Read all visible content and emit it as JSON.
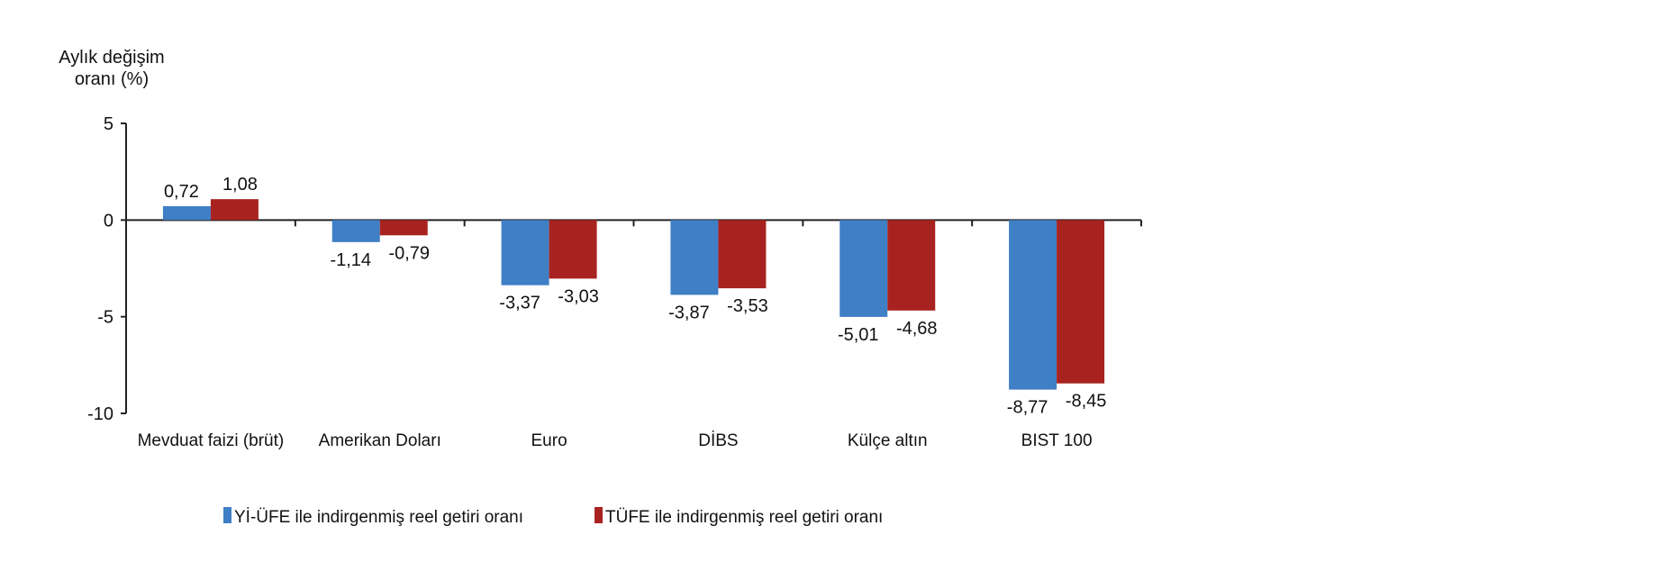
{
  "chart_data": {
    "type": "bar",
    "title": "",
    "ylabel_lines": [
      "Aylık değişim",
      "oranı (%)"
    ],
    "xlabel": "",
    "ylim": [
      -10,
      5
    ],
    "yticks": [
      5,
      0,
      -5,
      -10
    ],
    "ytick_labels": [
      "5",
      "0",
      "-5",
      "-10"
    ],
    "grid": false,
    "legend_position": "bottom",
    "categories": [
      "Mevduat faizi (brüt)",
      "Amerikan Doları",
      "Euro",
      "DİBS",
      "Külçe altın",
      "BIST 100"
    ],
    "series": [
      {
        "name": "Yİ-ÜFE ile indirgenmiş reel getiri oranı",
        "color": "#3f7fc5",
        "values": [
          0.72,
          -1.14,
          -3.37,
          -3.87,
          -5.01,
          -8.77
        ],
        "labels": [
          "0,72",
          "-1,14",
          "-3,37",
          "-3,87",
          "-5,01",
          "-8,77"
        ]
      },
      {
        "name": "TÜFE ile indirgenmiş reel getiri oranı",
        "color": "#a8231f",
        "values": [
          1.08,
          -0.79,
          -3.03,
          -3.53,
          -4.68,
          -8.45
        ],
        "labels": [
          "1,08",
          "-0,79",
          "-3,03",
          "-3,53",
          "-4,68",
          "-8,45"
        ]
      }
    ]
  }
}
